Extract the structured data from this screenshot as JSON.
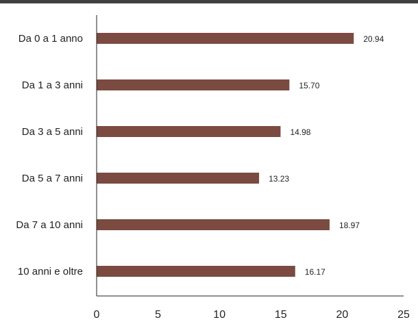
{
  "chart_data": {
    "type": "bar",
    "orientation": "horizontal",
    "categories": [
      "Da 0 a 1 anno",
      "Da 1 a 3 anni",
      "Da 3 a 5 anni",
      "Da 5 a 7 anni",
      "Da 7 a 10 anni",
      "10 anni e oltre"
    ],
    "values": [
      20.94,
      15.7,
      14.98,
      13.23,
      18.97,
      16.17
    ],
    "value_labels": [
      "20.94",
      "15.70",
      "14.98",
      "13.23",
      "18.97",
      "16.17"
    ],
    "xlim": [
      0,
      25
    ],
    "xticks": [
      0,
      5,
      10,
      15,
      20,
      25
    ],
    "grid": false,
    "title": "",
    "xlabel": "",
    "ylabel": "",
    "colors": {
      "bar": "#7b4a41",
      "axis": "#222222",
      "top_rule": "#404040"
    }
  }
}
